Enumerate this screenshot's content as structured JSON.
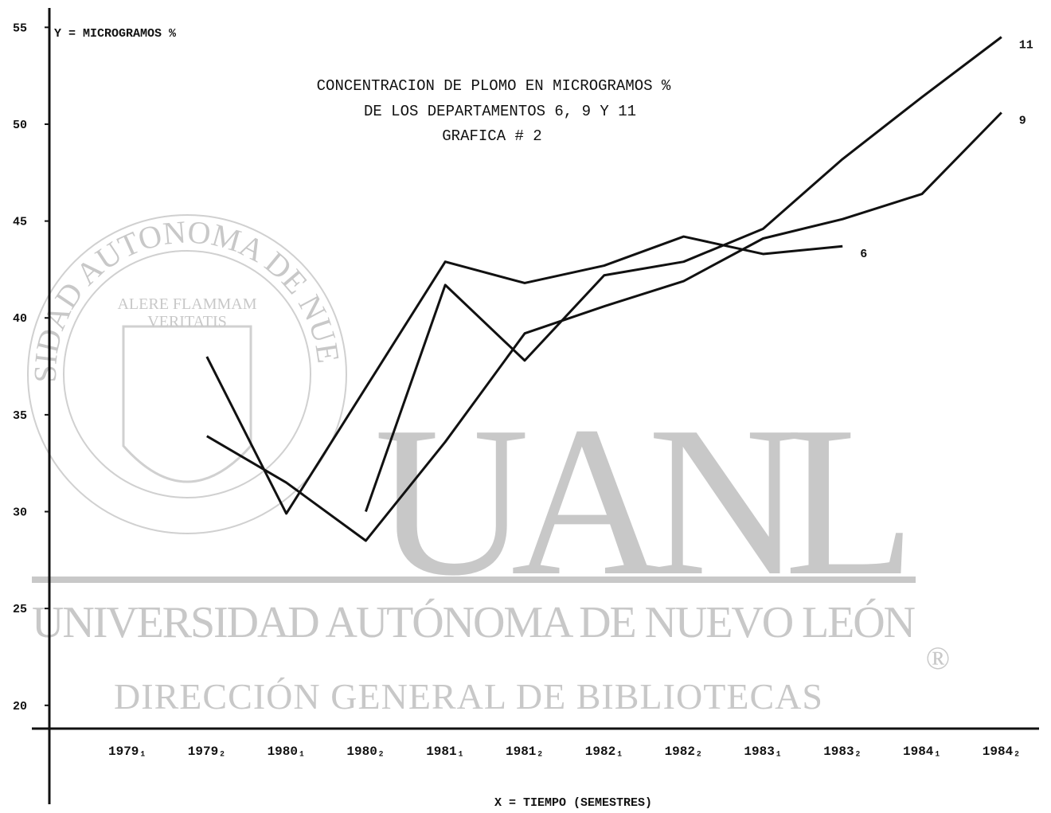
{
  "chart_data": {
    "type": "line",
    "title": "CONCENTRACION DE PLOMO EN MICROGRAMOS %",
    "subtitle": [
      "DE LOS DEPARTAMENTOS 6, 9 Y 11",
      "GRAFICA # 2"
    ],
    "y_label": "Y = MICROGRAMOS %",
    "x_label": "X = TIEMPO (SEMESTRES)",
    "categories": [
      "1979₁",
      "1979₂",
      "1980₁",
      "1980₂",
      "1981₁",
      "1981₂",
      "1982₁",
      "1982₂",
      "1983₁",
      "1983₂",
      "1984₁",
      "1984₂"
    ],
    "series": [
      {
        "name": "6",
        "color": "#111111",
        "values": [
          null,
          38.0,
          29.9,
          36.4,
          42.9,
          41.8,
          42.7,
          44.2,
          43.3,
          43.7,
          null,
          null
        ]
      },
      {
        "name": "9",
        "color": "#111111",
        "values": [
          null,
          33.9,
          31.5,
          28.5,
          33.6,
          39.2,
          40.6,
          41.9,
          44.1,
          45.1,
          46.4,
          50.6
        ]
      },
      {
        "name": "11",
        "color": "#111111",
        "values": [
          null,
          null,
          null,
          30.0,
          41.7,
          37.8,
          42.2,
          42.9,
          44.6,
          48.2,
          51.4,
          54.5
        ]
      }
    ],
    "ylim": [
      18.8,
      56
    ],
    "yticks": [
      20,
      25,
      30,
      35,
      40,
      45,
      50,
      55
    ],
    "grid": false
  },
  "watermark": {
    "acronym": "UANL",
    "name": "UNIVERSIDAD AUTÓNOMA DE NUEVO LEÓN",
    "department": "DIRECCIÓN GENERAL DE BIBLIOTECAS",
    "registered": "®",
    "seal_ring": "UNIVERSIDAD AUTONOMA DE NUEVO LEON",
    "seal_motto": [
      "ALERE FLAMMAM",
      "VERITATIS"
    ]
  }
}
